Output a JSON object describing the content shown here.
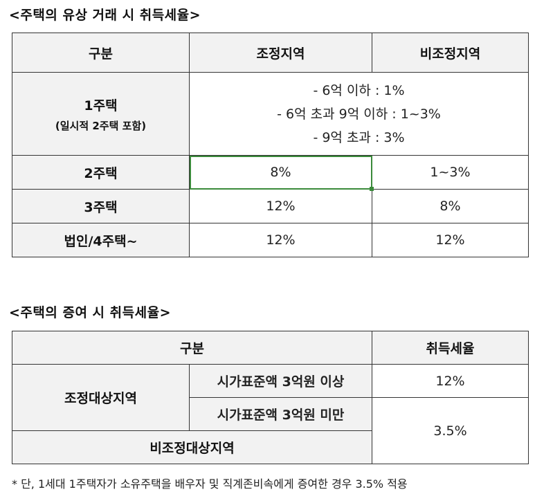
{
  "purchase_section": {
    "title": "<주택의 유상 거래 시 취득세율>",
    "headers": [
      "구분",
      "조정지역",
      "비조정지역"
    ],
    "row1": {
      "label": "1주택",
      "sublabel": "(일시적 2주택 포함)",
      "lines": [
        "- 6억 이하 : 1%",
        "- 6억 초과 9억 이하 : 1~3%",
        "- 9억 초과 : 3%"
      ]
    },
    "row2": {
      "label": "2주택",
      "adjusted": "8%",
      "non_adjusted": "1~3%"
    },
    "row3": {
      "label": "3주택",
      "adjusted": "12%",
      "non_adjusted": "8%"
    },
    "row4": {
      "label": "법인/4주택~",
      "adjusted": "12%",
      "non_adjusted": "12%"
    }
  },
  "gift_section": {
    "title": "<주택의 증여 시 취득세율>",
    "header_category": "구분",
    "header_rate": "취득세율",
    "adjusted_label": "조정대상지역",
    "over_label": "시가표준액 3억원 이상",
    "over_rate": "12%",
    "under_label": "시가표준액 3억원 미만",
    "under_rate": "3.5%",
    "non_adjusted_label": "비조정대상지역"
  },
  "footnote": "* 단, 1세대 1주택자가 소유주택을 배우자 및 직계존비속에게 증여한 경우 3.5% 적용"
}
